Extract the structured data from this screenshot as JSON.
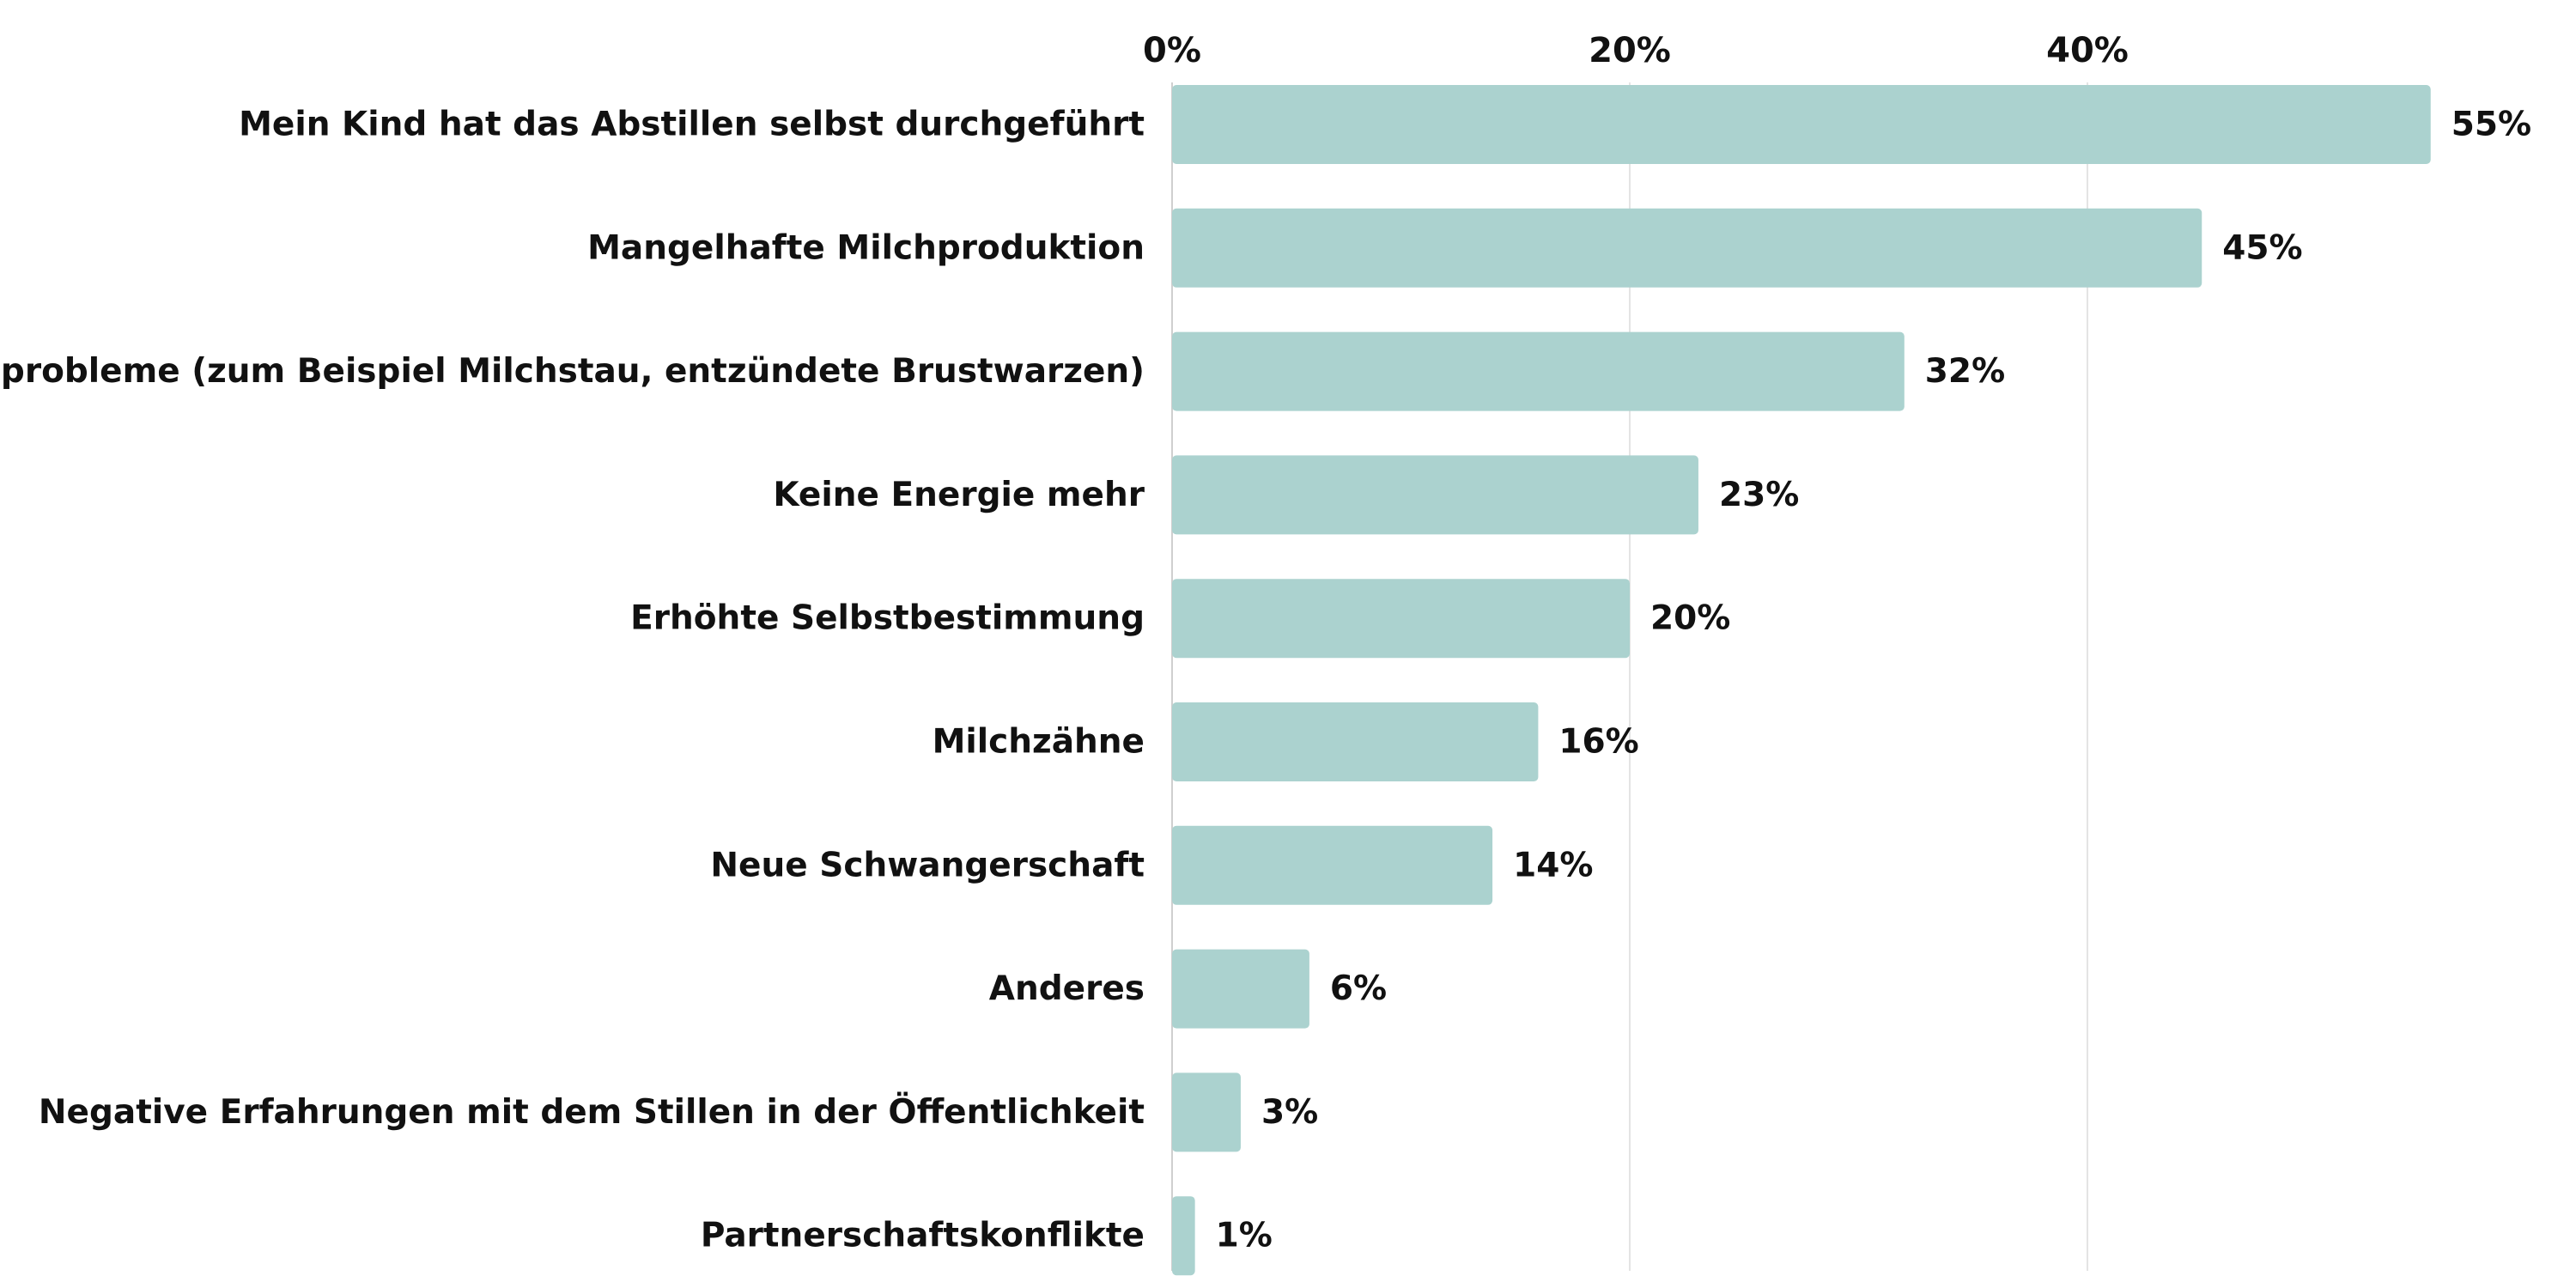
{
  "chart_data": {
    "type": "bar",
    "orientation": "horizontal",
    "title": "",
    "xlabel": "",
    "ylabel": "",
    "categories": [
      "Mein Kind hat das Abstillen selbst durchgeführt",
      "Mangelhafte Milchproduktion",
      "Stillprobleme (zum Beispiel Milchstau, entzündete Brustwarzen)",
      "Keine Energie mehr",
      "Erhöhte Selbstbestimmung",
      "Milchzähne",
      "Neue Schwangerschaft",
      "Anderes",
      "Negative Erfahrungen mit dem Stillen in der Öffentlichkeit",
      "Partnerschaftskonflikte"
    ],
    "values": [
      55,
      45,
      32,
      23,
      20,
      16,
      14,
      6,
      3,
      1
    ],
    "value_labels": [
      "55%",
      "45%",
      "32%",
      "23%",
      "20%",
      "16%",
      "14%",
      "6%",
      "3%",
      "1%"
    ],
    "x_ticks": [
      0,
      20,
      40
    ],
    "x_tick_labels": [
      "0%",
      "20%",
      "40%"
    ],
    "xlim": [
      0,
      55
    ],
    "grid": true,
    "axis_position": "top",
    "legend": "none",
    "bar_color": "#abd2cf"
  }
}
